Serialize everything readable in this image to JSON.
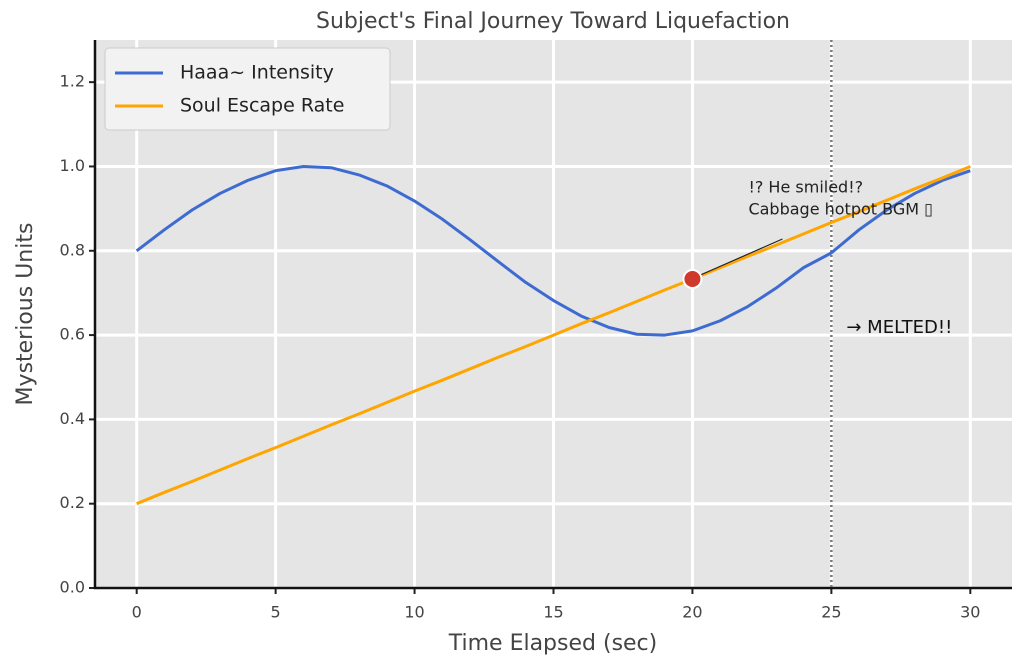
{
  "chart_data": {
    "type": "line",
    "title": "Subject's Final Journey Toward Liquefaction",
    "xlabel": "Time Elapsed (sec)",
    "ylabel": "Mysterious Units",
    "x": [
      0,
      1,
      2,
      3,
      4,
      5,
      6,
      7,
      8,
      9,
      10,
      11,
      12,
      13,
      14,
      15,
      16,
      17,
      18,
      19,
      20,
      21,
      22,
      23,
      24,
      25,
      26,
      27,
      28,
      29,
      30
    ],
    "series": [
      {
        "name": "Haaa~ Intensity",
        "color": "#3d6bd1",
        "values": [
          0.8,
          0.85,
          0.897,
          0.936,
          0.967,
          0.99,
          1.0,
          0.997,
          0.98,
          0.954,
          0.918,
          0.875,
          0.826,
          0.775,
          0.725,
          0.682,
          0.645,
          0.618,
          0.602,
          0.6,
          0.61,
          0.634,
          0.668,
          0.711,
          0.76,
          0.795,
          0.85,
          0.897,
          0.936,
          0.967,
          0.99
        ]
      },
      {
        "name": "Soul Escape Rate",
        "color": "#ffa500",
        "values": [
          0.2,
          0.227,
          0.253,
          0.28,
          0.307,
          0.333,
          0.36,
          0.387,
          0.413,
          0.44,
          0.467,
          0.493,
          0.52,
          0.547,
          0.573,
          0.6,
          0.627,
          0.653,
          0.68,
          0.707,
          0.733,
          0.76,
          0.787,
          0.813,
          0.84,
          0.867,
          0.893,
          0.92,
          0.947,
          0.973,
          1.0
        ]
      }
    ],
    "xlim": [
      -1.5,
      31.5
    ],
    "ylim": [
      0,
      1.3
    ],
    "xticks": [
      0,
      5,
      10,
      15,
      20,
      25,
      30
    ],
    "yticks": [
      {
        "value": 0,
        "label": "0.0"
      },
      0.2,
      0.4,
      0.6,
      0.8,
      {
        "value": 1,
        "label": "1.0"
      },
      1.2
    ],
    "grid": true,
    "legend": "upper left",
    "annotation": {
      "x": 20,
      "y": 0.733,
      "color": "#d03a2c",
      "text": [
        "!? He smiled!?",
        "Cabbage hotpot BGM ▯"
      ]
    },
    "vline": {
      "x": 25,
      "label": "→ MELTED!!"
    }
  }
}
